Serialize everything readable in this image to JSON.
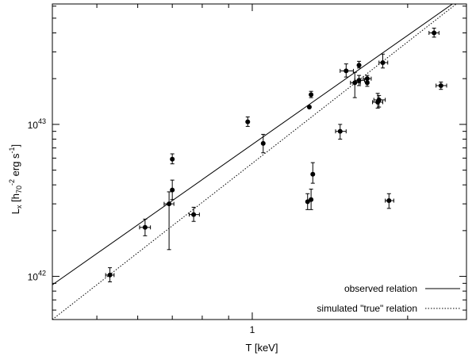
{
  "chart_data": {
    "type": "scatter",
    "x_scale": "log",
    "y_scale": "log",
    "xlim": [
      0.41,
      2.6
    ],
    "ylim": [
      5.2e+41,
      6.2e+43
    ],
    "x_ticks": [
      {
        "value": 1,
        "label": "1"
      }
    ],
    "y_ticks": [
      {
        "value": 1e+42,
        "base": "10",
        "exp": "42"
      },
      {
        "value": 1e+43,
        "base": "10",
        "exp": "43"
      }
    ],
    "xlabel": "T [keV]",
    "ylabel": {
      "base": "L",
      "sub": "x",
      "b1": " [h",
      "sub2": "70",
      "sup2": "-2",
      "b2": " erg s",
      "sup3": "-1",
      "b3": "]"
    },
    "legend_position": "bottom-right",
    "grid": false,
    "series": [
      {
        "name": "observed relation",
        "type": "line",
        "style": "solid",
        "x": [
          0.41,
          2.6
        ],
        "y": [
          8.8e+41,
          7.2e+43
        ]
      },
      {
        "name": "simulated \"true\" relation",
        "type": "line",
        "style": "dotted",
        "x": [
          0.41,
          2.6
        ],
        "y": [
          5.2e+41,
          7e+43
        ]
      },
      {
        "name": "",
        "type": "scatter",
        "points": [
          {
            "x": 0.53,
            "y": 1.02e+42,
            "ylo": 9.2e+41,
            "yhi": 1.14e+42,
            "xlo": 0.52,
            "xhi": 0.54
          },
          {
            "x": 0.62,
            "y": 2.1e+42,
            "ylo": 1.85e+42,
            "yhi": 2.38e+42,
            "xlo": 0.605,
            "xhi": 0.635
          },
          {
            "x": 0.69,
            "y": 3e+42,
            "ylo": 1.5e+42,
            "yhi": 3.6e+42,
            "xlo": 0.675,
            "xhi": 0.705
          },
          {
            "x": 0.7,
            "y": 3.7e+42,
            "ylo": 3.2e+42,
            "yhi": 4.3e+42
          },
          {
            "x": 0.7,
            "y": 5.9e+42,
            "ylo": 5.5e+42,
            "yhi": 6.4e+42
          },
          {
            "x": 0.77,
            "y": 2.55e+42,
            "ylo": 2.3e+42,
            "yhi": 2.85e+42,
            "xlo": 0.755,
            "xhi": 0.79
          },
          {
            "x": 0.98,
            "y": 1.04e+43,
            "ylo": 9.7e+42,
            "yhi": 1.12e+43
          },
          {
            "x": 1.05,
            "y": 7.5e+42,
            "ylo": 6.5e+42,
            "yhi": 8.6e+42
          },
          {
            "x": 1.28,
            "y": 3.1e+42,
            "ylo": 2.75e+42,
            "yhi": 3.5e+42
          },
          {
            "x": 1.3,
            "y": 3.2e+42,
            "ylo": 2.75e+42,
            "yhi": 3.75e+42
          },
          {
            "x": 1.31,
            "y": 4.7e+42,
            "ylo": 4.1e+42,
            "yhi": 5.6e+42
          },
          {
            "x": 1.29,
            "y": 1.3e+43
          },
          {
            "x": 1.3,
            "y": 1.57e+43,
            "ylo": 1.5e+43,
            "yhi": 1.65e+43
          },
          {
            "x": 1.48,
            "y": 9e+42,
            "ylo": 8e+42,
            "yhi": 1e+43,
            "xlo": 1.45,
            "xhi": 1.52
          },
          {
            "x": 1.52,
            "y": 2.25e+43,
            "ylo": 2.05e+43,
            "yhi": 2.5e+43,
            "xlo": 1.48,
            "xhi": 1.57
          },
          {
            "x": 1.58,
            "y": 1.88e+43,
            "ylo": 1.5e+43,
            "yhi": 2.2e+43,
            "xlo": 1.55,
            "xhi": 1.62
          },
          {
            "x": 1.61,
            "y": 1.95e+43,
            "ylo": 1.8e+43,
            "yhi": 2.1e+43,
            "xlo": 1.58,
            "xhi": 1.65
          },
          {
            "x": 1.61,
            "y": 2.45e+43,
            "ylo": 2.35e+43,
            "yhi": 2.6e+43
          },
          {
            "x": 1.67,
            "y": 2e+43,
            "ylo": 1.92e+43,
            "yhi": 2.1e+43,
            "xlo": 1.64,
            "xhi": 1.7
          },
          {
            "x": 1.67,
            "y": 1.88e+43,
            "ylo": 1.78e+43,
            "yhi": 1.98e+43
          },
          {
            "x": 1.76,
            "y": 1.45e+43,
            "ylo": 1.3e+43,
            "yhi": 1.55e+43,
            "xlo": 1.72,
            "xhi": 1.81
          },
          {
            "x": 1.75,
            "y": 1.4e+43,
            "ylo": 1.28e+43,
            "yhi": 1.6e+43,
            "xlo": 1.71,
            "xhi": 1.79
          },
          {
            "x": 1.79,
            "y": 2.55e+43,
            "ylo": 2.35e+43,
            "yhi": 2.9e+43,
            "xlo": 1.76,
            "xhi": 1.83
          },
          {
            "x": 1.84,
            "y": 3.15e+42,
            "ylo": 2.8e+42,
            "yhi": 3.5e+42,
            "xlo": 1.81,
            "xhi": 1.88
          },
          {
            "x": 2.25,
            "y": 4e+43,
            "ylo": 3.75e+43,
            "yhi": 4.3e+43,
            "xlo": 2.2,
            "xhi": 2.3
          },
          {
            "x": 2.32,
            "y": 1.8e+43,
            "ylo": 1.7e+43,
            "yhi": 1.9e+43,
            "xlo": 2.27,
            "xhi": 2.38
          }
        ]
      }
    ]
  }
}
